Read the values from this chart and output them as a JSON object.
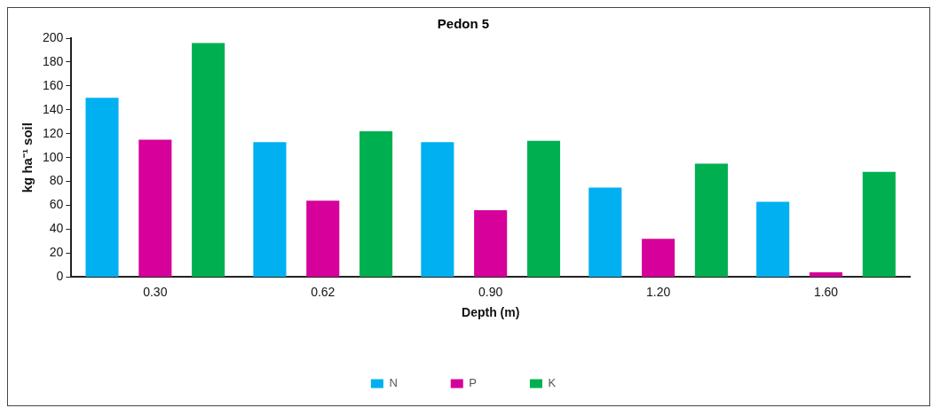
{
  "chart_data": {
    "type": "bar",
    "title": "Pedon 5",
    "xlabel": "Depth (m)",
    "ylabel": "kg ha⁻¹ soil",
    "categories": [
      "0.30",
      "0.62",
      "0.90",
      "1.20",
      "1.60"
    ],
    "series": [
      {
        "name": "N",
        "color": "#00b0f0",
        "values": [
          150,
          113,
          113,
          75,
          63
        ]
      },
      {
        "name": "P",
        "color": "#d6009a",
        "values": [
          115,
          64,
          56,
          32,
          4
        ]
      },
      {
        "name": "K",
        "color": "#00b050",
        "values": [
          196,
          122,
          114,
          95,
          88
        ]
      }
    ],
    "ylim": [
      0,
      200
    ],
    "yticks": [
      0,
      20,
      40,
      60,
      80,
      100,
      120,
      140,
      160,
      180,
      200
    ],
    "grid": false,
    "legend": "bottom"
  }
}
